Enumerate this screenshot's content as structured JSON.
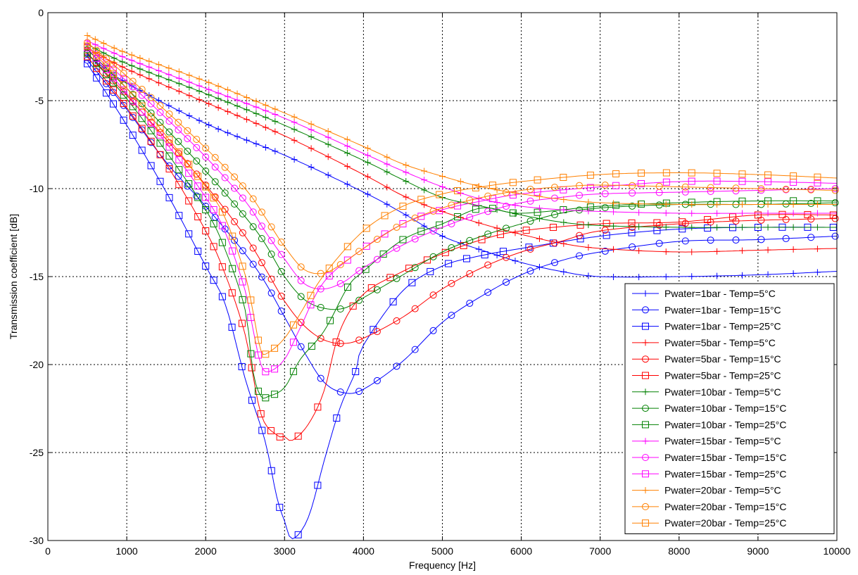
{
  "chart_data": {
    "type": "line",
    "title": "",
    "xlabel": "Frequency [Hz]",
    "ylabel": "Transmission coefficient [dB]",
    "xlim": [
      0,
      10000
    ],
    "ylim": [
      -30,
      0
    ],
    "x_ticks": [
      "0",
      "1000",
      "2000",
      "3000",
      "4000",
      "5000",
      "6000",
      "7000",
      "8000",
      "9000",
      "10000"
    ],
    "y_ticks": [
      "0",
      "-5",
      "-10",
      "-15",
      "-20",
      "-25",
      "-30"
    ],
    "grid": true,
    "legend_position": "bottom-right",
    "colors": {
      "1bar": "#0000ff",
      "5bar": "#ff0000",
      "10bar": "#008000",
      "15bar": "#ff00ff",
      "20bar": "#ff8000"
    },
    "series": [
      {
        "name": "Pwater=1bar - Temp=5°C",
        "color": "#0000ff",
        "marker": "plus",
        "points": [
          [
            500,
            -2.4
          ],
          [
            1000,
            -4.0
          ],
          [
            2000,
            -6.3
          ],
          [
            3000,
            -8.1
          ],
          [
            4000,
            -10.2
          ],
          [
            4500,
            -11.4
          ],
          [
            5000,
            -12.7
          ],
          [
            5500,
            -13.5
          ],
          [
            6000,
            -14.2
          ],
          [
            6500,
            -14.7
          ],
          [
            7000,
            -15.0
          ],
          [
            8000,
            -15.0
          ],
          [
            9000,
            -14.9
          ],
          [
            10000,
            -14.7
          ]
        ]
      },
      {
        "name": "Pwater=1bar - Temp=15°C",
        "color": "#0000ff",
        "marker": "circle",
        "points": [
          [
            500,
            -2.7
          ],
          [
            1000,
            -5.5
          ],
          [
            1500,
            -8.5
          ],
          [
            2000,
            -11.0
          ],
          [
            2500,
            -13.7
          ],
          [
            2750,
            -15.3
          ],
          [
            3000,
            -17.3
          ],
          [
            3250,
            -19.3
          ],
          [
            3500,
            -21.0
          ],
          [
            3750,
            -21.6
          ],
          [
            4000,
            -21.4
          ],
          [
            4500,
            -19.8
          ],
          [
            5000,
            -17.6
          ],
          [
            5500,
            -16.1
          ],
          [
            6000,
            -14.9
          ],
          [
            6500,
            -14.1
          ],
          [
            7000,
            -13.6
          ],
          [
            8000,
            -13.0
          ],
          [
            9000,
            -12.9
          ],
          [
            10000,
            -12.7
          ]
        ]
      },
      {
        "name": "Pwater=1bar - Temp=25°C",
        "color": "#0000ff",
        "marker": "square",
        "points": [
          [
            500,
            -2.9
          ],
          [
            1000,
            -6.4
          ],
          [
            1500,
            -10.2
          ],
          [
            2000,
            -14.4
          ],
          [
            2250,
            -16.6
          ],
          [
            2500,
            -20.8
          ],
          [
            2750,
            -24.3
          ],
          [
            2900,
            -27.5
          ],
          [
            3000,
            -28.9
          ],
          [
            3100,
            -29.9
          ],
          [
            3300,
            -28.7
          ],
          [
            3500,
            -25.5
          ],
          [
            3700,
            -22.5
          ],
          [
            3900,
            -20.4
          ],
          [
            4000,
            -18.9
          ],
          [
            4500,
            -15.8
          ],
          [
            5000,
            -14.4
          ],
          [
            5500,
            -13.8
          ],
          [
            6000,
            -13.4
          ],
          [
            7000,
            -12.7
          ],
          [
            8000,
            -12.3
          ],
          [
            9000,
            -12.2
          ],
          [
            10000,
            -12.2
          ]
        ]
      },
      {
        "name": "Pwater=5bar - Temp=5°C",
        "color": "#ff0000",
        "marker": "plus",
        "points": [
          [
            500,
            -2.0
          ],
          [
            1000,
            -3.2
          ],
          [
            2000,
            -5.1
          ],
          [
            3000,
            -7.0
          ],
          [
            4000,
            -9.2
          ],
          [
            4500,
            -10.4
          ],
          [
            5000,
            -11.3
          ],
          [
            5500,
            -12.0
          ],
          [
            6000,
            -12.6
          ],
          [
            6500,
            -13.1
          ],
          [
            7000,
            -13.4
          ],
          [
            8000,
            -13.6
          ],
          [
            9000,
            -13.5
          ],
          [
            10000,
            -13.4
          ]
        ]
      },
      {
        "name": "Pwater=5bar - Temp=15°C",
        "color": "#ff0000",
        "marker": "circle",
        "points": [
          [
            500,
            -2.3
          ],
          [
            1000,
            -4.7
          ],
          [
            1500,
            -7.2
          ],
          [
            2000,
            -9.8
          ],
          [
            2500,
            -12.7
          ],
          [
            2750,
            -14.5
          ],
          [
            3000,
            -16.4
          ],
          [
            3250,
            -17.8
          ],
          [
            3500,
            -18.6
          ],
          [
            3750,
            -18.8
          ],
          [
            4000,
            -18.5
          ],
          [
            4500,
            -17.3
          ],
          [
            5000,
            -15.7
          ],
          [
            5500,
            -14.5
          ],
          [
            6000,
            -13.6
          ],
          [
            6500,
            -13.0
          ],
          [
            7000,
            -12.4
          ],
          [
            8000,
            -12.0
          ],
          [
            9000,
            -11.8
          ],
          [
            10000,
            -11.7
          ]
        ]
      },
      {
        "name": "Pwater=5bar - Temp=25°C",
        "color": "#ff0000",
        "marker": "square",
        "points": [
          [
            500,
            -2.5
          ],
          [
            1000,
            -5.4
          ],
          [
            1500,
            -8.6
          ],
          [
            2000,
            -12.4
          ],
          [
            2250,
            -14.9
          ],
          [
            2500,
            -18.3
          ],
          [
            2700,
            -22.8
          ],
          [
            2900,
            -24.0
          ],
          [
            3000,
            -24.1
          ],
          [
            3100,
            -24.3
          ],
          [
            3300,
            -23.4
          ],
          [
            3500,
            -21.5
          ],
          [
            3700,
            -18.1
          ],
          [
            4000,
            -16.0
          ],
          [
            4500,
            -14.7
          ],
          [
            5000,
            -13.7
          ],
          [
            5500,
            -12.9
          ],
          [
            6000,
            -12.4
          ],
          [
            7000,
            -12.0
          ],
          [
            8000,
            -11.9
          ],
          [
            9000,
            -11.5
          ],
          [
            10000,
            -11.5
          ]
        ]
      },
      {
        "name": "Pwater=10bar - Temp=5°C",
        "color": "#008000",
        "marker": "plus",
        "points": [
          [
            500,
            -1.8
          ],
          [
            1000,
            -2.9
          ],
          [
            2000,
            -4.6
          ],
          [
            3000,
            -6.4
          ],
          [
            4000,
            -8.4
          ],
          [
            4500,
            -9.5
          ],
          [
            5000,
            -10.5
          ],
          [
            5500,
            -11.0
          ],
          [
            6000,
            -11.5
          ],
          [
            6500,
            -11.9
          ],
          [
            7000,
            -12.1
          ],
          [
            8000,
            -12.2
          ],
          [
            9000,
            -12.2
          ],
          [
            10000,
            -12.2
          ]
        ]
      },
      {
        "name": "Pwater=10bar - Temp=15°C",
        "color": "#008000",
        "marker": "circle",
        "points": [
          [
            500,
            -2.1
          ],
          [
            1000,
            -4.3
          ],
          [
            1500,
            -6.6
          ],
          [
            2000,
            -9.0
          ],
          [
            2500,
            -11.6
          ],
          [
            2750,
            -13.1
          ],
          [
            3000,
            -15.0
          ],
          [
            3250,
            -16.3
          ],
          [
            3500,
            -16.8
          ],
          [
            3750,
            -16.8
          ],
          [
            4000,
            -16.2
          ],
          [
            4500,
            -14.9
          ],
          [
            5000,
            -13.6
          ],
          [
            5500,
            -12.7
          ],
          [
            6000,
            -12.0
          ],
          [
            6500,
            -11.4
          ],
          [
            7000,
            -11.1
          ],
          [
            8000,
            -10.9
          ],
          [
            9000,
            -10.9
          ],
          [
            10000,
            -10.8
          ]
        ]
      },
      {
        "name": "Pwater=10bar - Temp=25°C",
        "color": "#008000",
        "marker": "square",
        "points": [
          [
            500,
            -2.3
          ],
          [
            1000,
            -4.9
          ],
          [
            1500,
            -7.9
          ],
          [
            2000,
            -11.2
          ],
          [
            2250,
            -13.5
          ],
          [
            2500,
            -16.9
          ],
          [
            2600,
            -20.4
          ],
          [
            2700,
            -21.8
          ],
          [
            2800,
            -21.8
          ],
          [
            3000,
            -21.3
          ],
          [
            3200,
            -19.7
          ],
          [
            3500,
            -18.1
          ],
          [
            3800,
            -15.6
          ],
          [
            4000,
            -14.7
          ],
          [
            4500,
            -12.9
          ],
          [
            5000,
            -12.0
          ],
          [
            5500,
            -11.1
          ],
          [
            6000,
            -11.4
          ],
          [
            7000,
            -11.0
          ],
          [
            8000,
            -10.8
          ],
          [
            9000,
            -10.7
          ],
          [
            10000,
            -10.7
          ]
        ]
      },
      {
        "name": "Pwater=15bar - Temp=5°C",
        "color": "#ff00ff",
        "marker": "plus",
        "points": [
          [
            500,
            -1.6
          ],
          [
            1000,
            -2.6
          ],
          [
            2000,
            -4.3
          ],
          [
            3000,
            -6.0
          ],
          [
            4000,
            -8.0
          ],
          [
            4500,
            -9.0
          ],
          [
            5000,
            -9.9
          ],
          [
            5500,
            -10.6
          ],
          [
            6000,
            -11.0
          ],
          [
            6500,
            -11.2
          ],
          [
            7000,
            -11.3
          ],
          [
            8000,
            -11.4
          ],
          [
            9000,
            -11.4
          ],
          [
            10000,
            -11.4
          ]
        ]
      },
      {
        "name": "Pwater=15bar - Temp=15°C",
        "color": "#ff00ff",
        "marker": "circle",
        "points": [
          [
            500,
            -1.9
          ],
          [
            1000,
            -3.9
          ],
          [
            1500,
            -6.0
          ],
          [
            2000,
            -8.2
          ],
          [
            2500,
            -10.7
          ],
          [
            2750,
            -12.4
          ],
          [
            3000,
            -14.0
          ],
          [
            3250,
            -15.4
          ],
          [
            3500,
            -15.7
          ],
          [
            3750,
            -15.3
          ],
          [
            4000,
            -14.5
          ],
          [
            4500,
            -13.2
          ],
          [
            5000,
            -12.2
          ],
          [
            5500,
            -11.4
          ],
          [
            6000,
            -10.8
          ],
          [
            6500,
            -10.5
          ],
          [
            7000,
            -10.3
          ],
          [
            8000,
            -10.2
          ],
          [
            9000,
            -10.1
          ],
          [
            10000,
            -10.0
          ]
        ]
      },
      {
        "name": "Pwater=15bar - Temp=25°C",
        "color": "#ff00ff",
        "marker": "square",
        "points": [
          [
            500,
            -2.0
          ],
          [
            1000,
            -4.6
          ],
          [
            1500,
            -7.4
          ],
          [
            2000,
            -10.5
          ],
          [
            2250,
            -12.5
          ],
          [
            2500,
            -15.8
          ],
          [
            2600,
            -18.0
          ],
          [
            2700,
            -20.0
          ],
          [
            2800,
            -20.4
          ],
          [
            3000,
            -19.7
          ],
          [
            3200,
            -17.9
          ],
          [
            3500,
            -15.3
          ],
          [
            4000,
            -13.4
          ],
          [
            4500,
            -12.0
          ],
          [
            5000,
            -11.2
          ],
          [
            5500,
            -10.7
          ],
          [
            6000,
            -10.3
          ],
          [
            7000,
            -9.9
          ],
          [
            8000,
            -9.6
          ],
          [
            9000,
            -9.6
          ],
          [
            10000,
            -9.7
          ]
        ]
      },
      {
        "name": "Pwater=20bar - Temp=5°C",
        "color": "#ff8000",
        "marker": "plus",
        "points": [
          [
            500,
            -1.3
          ],
          [
            1000,
            -2.3
          ],
          [
            2000,
            -3.9
          ],
          [
            3000,
            -5.7
          ],
          [
            4000,
            -7.6
          ],
          [
            4500,
            -8.6
          ],
          [
            5000,
            -9.3
          ],
          [
            5500,
            -9.9
          ],
          [
            6000,
            -10.3
          ],
          [
            6500,
            -10.6
          ],
          [
            7000,
            -10.8
          ],
          [
            8000,
            -10.9
          ],
          [
            9000,
            -10.9
          ],
          [
            10000,
            -10.9
          ]
        ]
      },
      {
        "name": "Pwater=20bar - Temp=15°C",
        "color": "#ff8000",
        "marker": "circle",
        "points": [
          [
            500,
            -1.7
          ],
          [
            1000,
            -3.6
          ],
          [
            1500,
            -5.6
          ],
          [
            2000,
            -7.7
          ],
          [
            2500,
            -10.0
          ],
          [
            2750,
            -11.6
          ],
          [
            3000,
            -13.3
          ],
          [
            3250,
            -14.6
          ],
          [
            3500,
            -14.8
          ],
          [
            3750,
            -14.2
          ],
          [
            4000,
            -13.4
          ],
          [
            4500,
            -12.0
          ],
          [
            5000,
            -11.1
          ],
          [
            5500,
            -10.5
          ],
          [
            6000,
            -10.1
          ],
          [
            6500,
            -9.9
          ],
          [
            7000,
            -9.8
          ],
          [
            8000,
            -9.9
          ],
          [
            9000,
            -10.0
          ],
          [
            10000,
            -10.1
          ]
        ]
      },
      {
        "name": "Pwater=20bar - Temp=25°C",
        "color": "#ff8000",
        "marker": "square",
        "points": [
          [
            500,
            -1.9
          ],
          [
            1000,
            -4.3
          ],
          [
            1500,
            -7.0
          ],
          [
            2000,
            -9.9
          ],
          [
            2250,
            -11.7
          ],
          [
            2500,
            -14.9
          ],
          [
            2600,
            -17.0
          ],
          [
            2700,
            -19.2
          ],
          [
            2800,
            -19.3
          ],
          [
            3000,
            -18.5
          ],
          [
            3200,
            -17.1
          ],
          [
            3500,
            -14.9
          ],
          [
            4000,
            -12.4
          ],
          [
            4500,
            -11.0
          ],
          [
            5000,
            -10.3
          ],
          [
            5500,
            -9.9
          ],
          [
            6000,
            -9.6
          ],
          [
            7000,
            -9.2
          ],
          [
            8000,
            -9.1
          ],
          [
            9000,
            -9.2
          ],
          [
            10000,
            -9.4
          ]
        ]
      }
    ]
  }
}
